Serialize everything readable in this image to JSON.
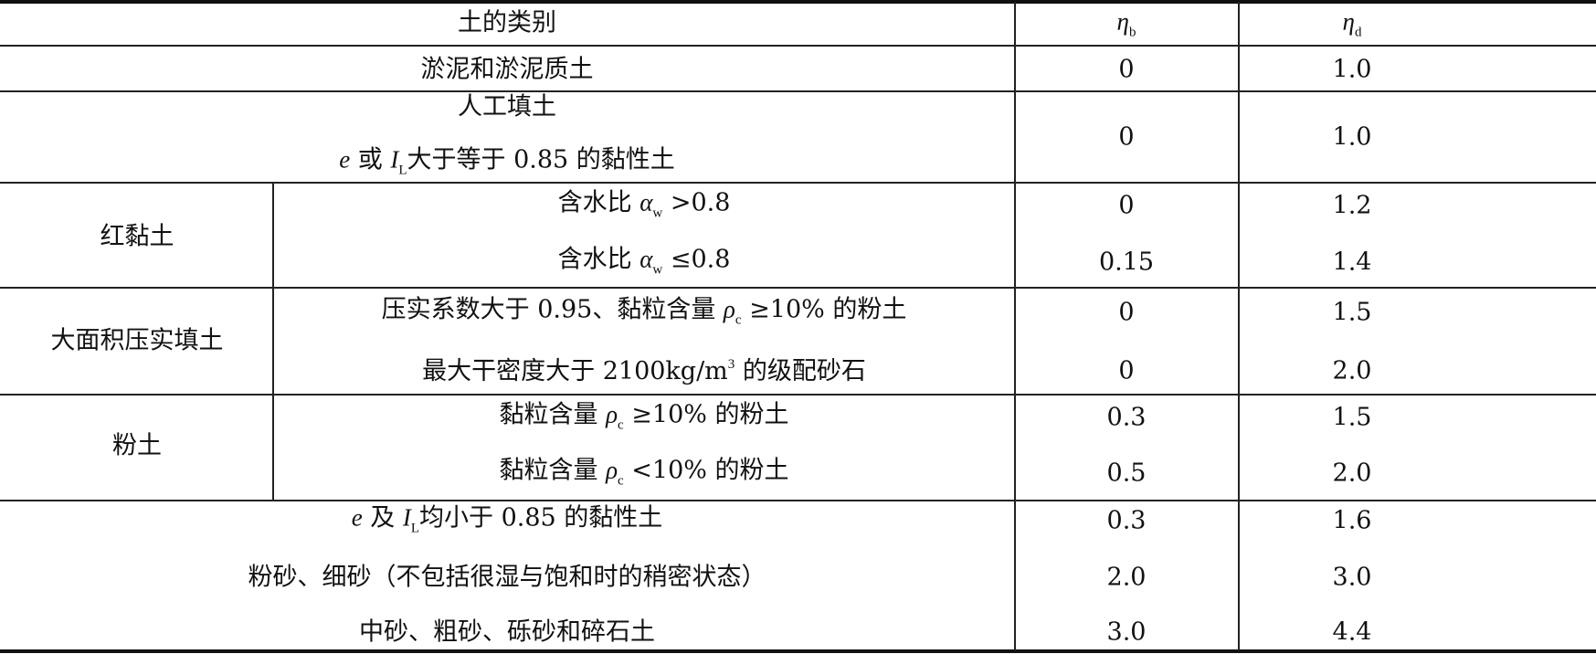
{
  "table": {
    "header": {
      "category": [
        {
          "text": "土的类别"
        }
      ],
      "eta_b": [
        {
          "text": "η",
          "fmt": "i"
        },
        {
          "text": "b",
          "fmt": "sub"
        }
      ],
      "eta_d": [
        {
          "text": "η",
          "fmt": "i"
        },
        {
          "text": "d",
          "fmt": "sub"
        }
      ]
    },
    "rows": [
      {
        "label": [
          {
            "text": "淤泥和淤泥质土"
          }
        ],
        "eta_b": "0",
        "eta_d": "1.0"
      },
      {
        "label": [
          {
            "text": "人工填土"
          }
        ],
        "label2": [
          {
            "text": "e",
            "fmt": "i"
          },
          {
            "text": " 或 "
          },
          {
            "text": "I",
            "fmt": "i"
          },
          {
            "text": "L",
            "fmt": "sub"
          },
          {
            "text": "大于等于 0.85 的黏性土"
          }
        ],
        "eta_b": "0",
        "eta_d": "1.0"
      },
      {
        "group": "红黏土",
        "sub": [
          {
            "label": [
              {
                "text": "含水比 "
              },
              {
                "text": "α",
                "fmt": "i"
              },
              {
                "text": "w",
                "fmt": "sub"
              },
              {
                "text": " >0.8"
              }
            ],
            "eta_b": "0",
            "eta_d": "1.2"
          },
          {
            "label": [
              {
                "text": "含水比 "
              },
              {
                "text": "α",
                "fmt": "i"
              },
              {
                "text": "w",
                "fmt": "sub"
              },
              {
                "text": " ≤0.8"
              }
            ],
            "eta_b": "0.15",
            "eta_d": "1.4"
          }
        ]
      },
      {
        "group": "大面积压实填土",
        "sub": [
          {
            "label": [
              {
                "text": "压实系数大于 0.95、黏粒含量 "
              },
              {
                "text": "ρ",
                "fmt": "i"
              },
              {
                "text": "c",
                "fmt": "sub"
              },
              {
                "text": " ≥10% 的粉土"
              }
            ],
            "eta_b": "0",
            "eta_d": "1.5"
          },
          {
            "label": [
              {
                "text": "最大干密度大于 2100kg/m"
              },
              {
                "text": "3",
                "fmt": "sup"
              },
              {
                "text": " 的级配砂石"
              }
            ],
            "eta_b": "0",
            "eta_d": "2.0"
          }
        ]
      },
      {
        "group": "粉土",
        "sub": [
          {
            "label": [
              {
                "text": "黏粒含量 "
              },
              {
                "text": "ρ",
                "fmt": "i"
              },
              {
                "text": "c",
                "fmt": "sub"
              },
              {
                "text": " ≥10% 的粉土"
              }
            ],
            "eta_b": "0.3",
            "eta_d": "1.5"
          },
          {
            "label": [
              {
                "text": "黏粒含量 "
              },
              {
                "text": "ρ",
                "fmt": "i"
              },
              {
                "text": "c",
                "fmt": "sub"
              },
              {
                "text": " <10% 的粉土"
              }
            ],
            "eta_b": "0.5",
            "eta_d": "2.0"
          }
        ]
      },
      {
        "multi": [
          {
            "label": [
              {
                "text": "e",
                "fmt": "i"
              },
              {
                "text": " 及 "
              },
              {
                "text": "I",
                "fmt": "i"
              },
              {
                "text": "L",
                "fmt": "sub"
              },
              {
                "text": "均小于 0.85 的黏性土"
              }
            ],
            "eta_b": "0.3",
            "eta_d": "1.6"
          },
          {
            "label": [
              {
                "text": "粉砂、细砂（不包括很湿与饱和时的稍密状态）"
              }
            ],
            "eta_b": "2.0",
            "eta_d": "3.0"
          },
          {
            "label": [
              {
                "text": "中砂、粗砂、砾砂和碎石土"
              }
            ],
            "eta_b": "3.0",
            "eta_d": "4.4"
          }
        ]
      }
    ]
  }
}
